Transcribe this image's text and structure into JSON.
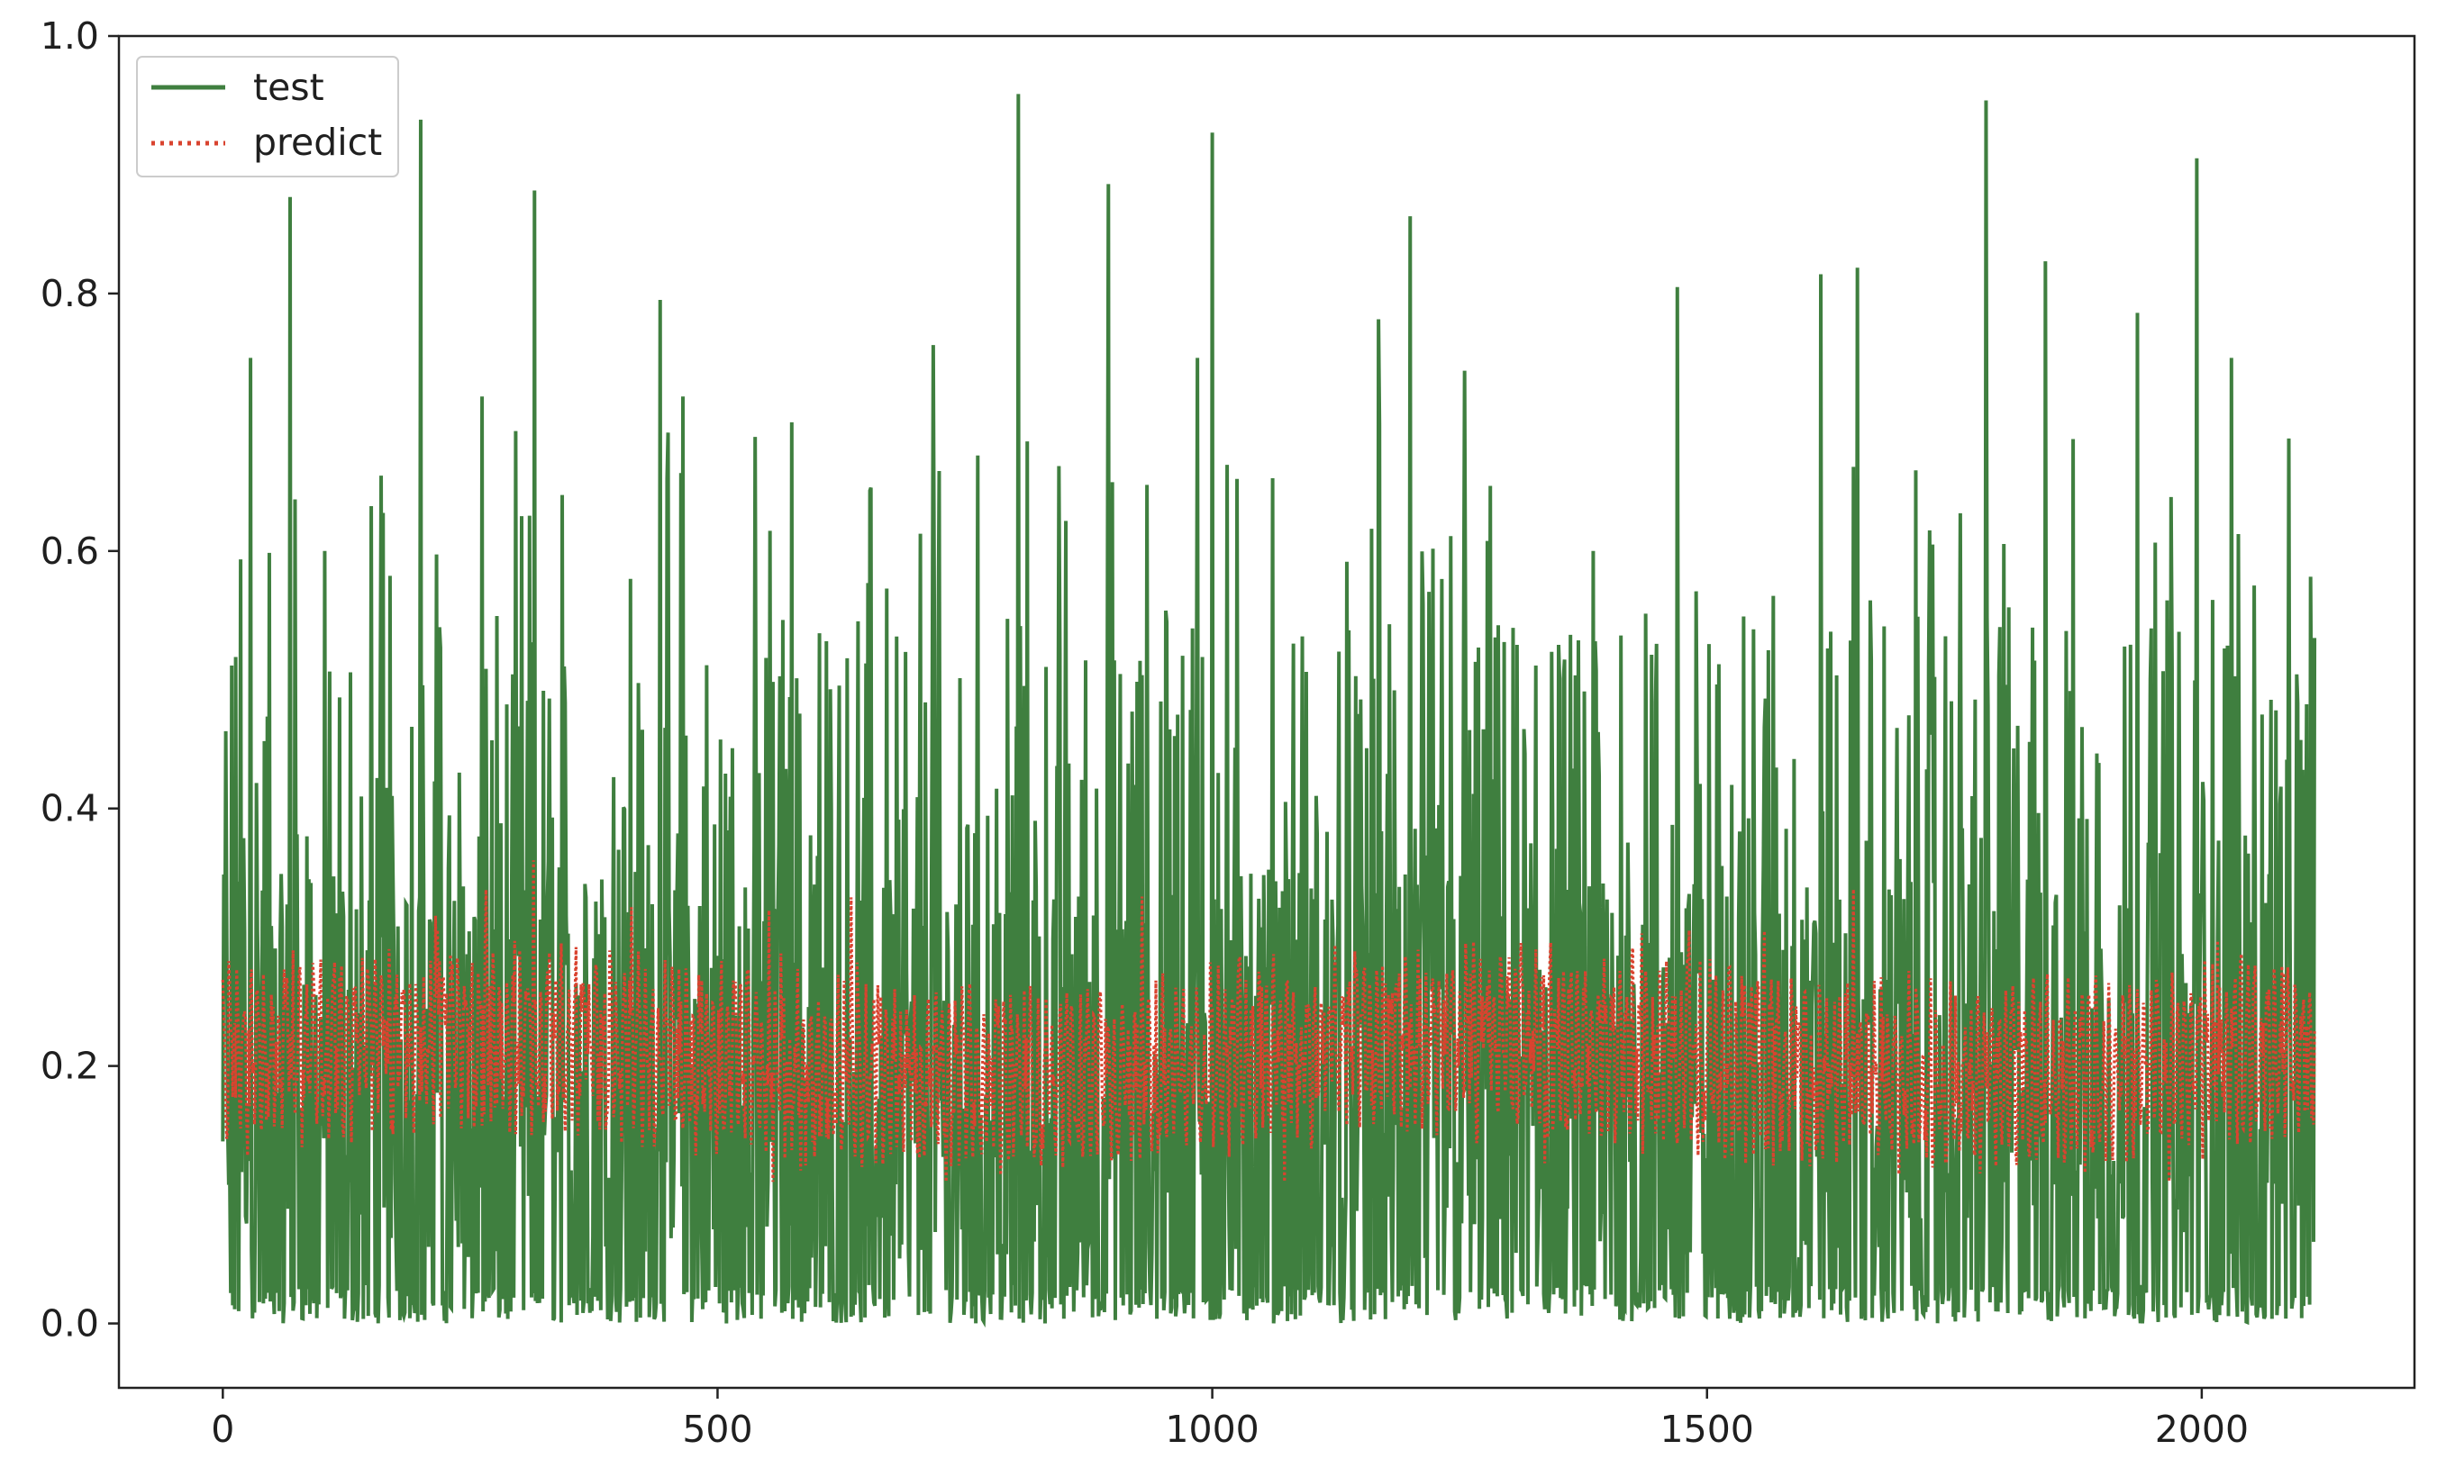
{
  "chart_data": {
    "type": "line",
    "title": "",
    "xlabel": "",
    "ylabel": "",
    "xlim": [
      -105,
      2215
    ],
    "ylim": [
      -0.05,
      1.0
    ],
    "x_ticks": [
      0,
      500,
      1000,
      1500,
      2000
    ],
    "x_tick_labels": [
      "0",
      "500",
      "1000",
      "1500",
      "2000"
    ],
    "y_ticks": [
      0.0,
      0.2,
      0.4,
      0.6,
      0.8,
      1.0
    ],
    "y_tick_labels": [
      "0.0",
      "0.2",
      "0.4",
      "0.6",
      "0.8",
      "1.0"
    ],
    "grid": false,
    "legend_position": "upper left",
    "n_points": 2115,
    "series": [
      {
        "name": "test",
        "color": "#3f7f3f",
        "line_style": "solid",
        "range": [
          0.0,
          0.96
        ],
        "peaks": [
          {
            "x": 3,
            "y": 0.46
          },
          {
            "x": 28,
            "y": 0.75
          },
          {
            "x": 68,
            "y": 0.875
          },
          {
            "x": 103,
            "y": 0.6
          },
          {
            "x": 200,
            "y": 0.935
          },
          {
            "x": 262,
            "y": 0.72
          },
          {
            "x": 315,
            "y": 0.88
          },
          {
            "x": 442,
            "y": 0.795
          },
          {
            "x": 465,
            "y": 0.72
          },
          {
            "x": 575,
            "y": 0.7
          },
          {
            "x": 718,
            "y": 0.76
          },
          {
            "x": 804,
            "y": 0.955
          },
          {
            "x": 895,
            "y": 0.885
          },
          {
            "x": 985,
            "y": 0.75
          },
          {
            "x": 1000,
            "y": 0.925
          },
          {
            "x": 1168,
            "y": 0.78
          },
          {
            "x": 1200,
            "y": 0.86
          },
          {
            "x": 1255,
            "y": 0.74
          },
          {
            "x": 1385,
            "y": 0.6
          },
          {
            "x": 1470,
            "y": 0.805
          },
          {
            "x": 1615,
            "y": 0.815
          },
          {
            "x": 1652,
            "y": 0.82
          },
          {
            "x": 1782,
            "y": 0.95
          },
          {
            "x": 1842,
            "y": 0.825
          },
          {
            "x": 1935,
            "y": 0.785
          },
          {
            "x": 1995,
            "y": 0.905
          },
          {
            "x": 2030,
            "y": 0.75
          },
          {
            "x": 2110,
            "y": 0.58
          }
        ]
      },
      {
        "name": "predict",
        "color": "#d9432f",
        "line_style": "dotted",
        "range": [
          0.11,
          0.37
        ]
      }
    ]
  }
}
